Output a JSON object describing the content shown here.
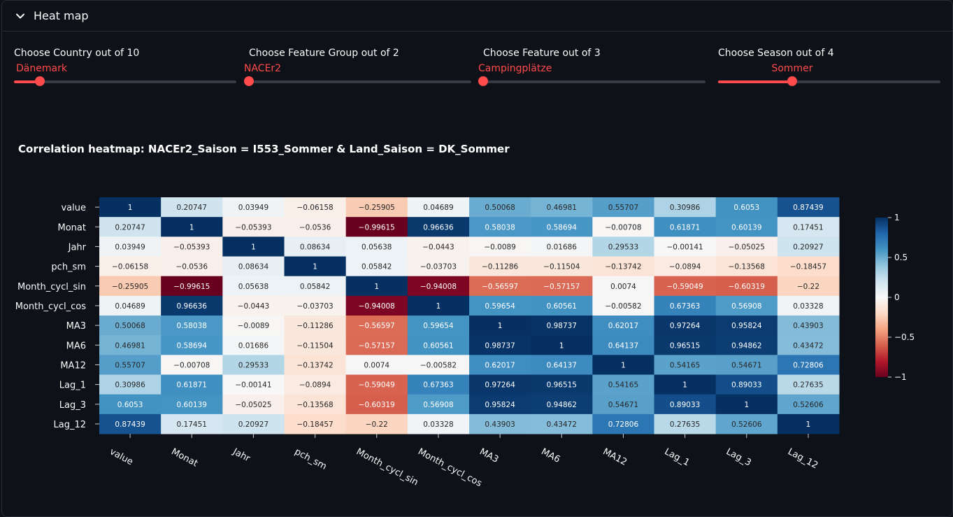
{
  "expander": {
    "title": "Heat map"
  },
  "sliders": [
    {
      "label": "Choose Country out of 10",
      "value": "Dänemark",
      "position": 2,
      "count": 10
    },
    {
      "label": "Choose Feature Group out of 2",
      "value": "NACEr2",
      "position": 1,
      "count": 2
    },
    {
      "label": "Choose Feature out of 3",
      "value": "Campingplätze",
      "position": 1,
      "count": 3
    },
    {
      "label": "Choose Season out of 4",
      "value": "Sommer",
      "position": 3,
      "count": 4
    }
  ],
  "colors": {
    "accent": "#ff4b4b",
    "background": "#0e1117",
    "track": "#383b45"
  },
  "chart_data": {
    "type": "heatmap",
    "title": "Correlation heatmap: NACEr2_Saison = I553_Sommer & Land_Saison = DK_Sommer",
    "labels": [
      "value",
      "Monat",
      "Jahr",
      "pch_sm",
      "Month_cycl_sin",
      "Month_cycl_cos",
      "MA3",
      "MA6",
      "MA12",
      "Lag_1",
      "Lag_3",
      "Lag_12"
    ],
    "values": [
      [
        1,
        0.20747,
        0.03949,
        -0.06158,
        -0.25905,
        0.04689,
        0.50068,
        0.46981,
        0.55707,
        0.30986,
        0.6053,
        0.87439
      ],
      [
        0.20747,
        1,
        -0.05393,
        -0.0536,
        -0.99615,
        0.96636,
        0.58038,
        0.58694,
        -0.00708,
        0.61871,
        0.60139,
        0.17451
      ],
      [
        0.03949,
        -0.05393,
        1,
        0.08634,
        0.05638,
        -0.0443,
        -0.0089,
        0.01686,
        0.29533,
        -0.00141,
        -0.05025,
        0.20927
      ],
      [
        -0.06158,
        -0.0536,
        0.08634,
        1,
        0.05842,
        -0.03703,
        -0.11286,
        -0.11504,
        -0.13742,
        -0.0894,
        -0.13568,
        -0.18457
      ],
      [
        -0.25905,
        -0.99615,
        0.05638,
        0.05842,
        1,
        -0.94008,
        -0.56597,
        -0.57157,
        0.0074,
        -0.59049,
        -0.60319,
        -0.22
      ],
      [
        0.04689,
        0.96636,
        -0.0443,
        -0.03703,
        -0.94008,
        1,
        0.59654,
        0.60561,
        -0.00582,
        0.67363,
        0.56908,
        0.03328
      ],
      [
        0.50068,
        0.58038,
        -0.0089,
        -0.11286,
        -0.56597,
        0.59654,
        1,
        0.98737,
        0.62017,
        0.97264,
        0.95824,
        0.43903
      ],
      [
        0.46981,
        0.58694,
        0.01686,
        -0.11504,
        -0.57157,
        0.60561,
        0.98737,
        1,
        0.64137,
        0.96515,
        0.94862,
        0.43472
      ],
      [
        0.55707,
        -0.00708,
        0.29533,
        -0.13742,
        0.0074,
        -0.00582,
        0.62017,
        0.64137,
        1,
        0.54165,
        0.54671,
        0.72806
      ],
      [
        0.30986,
        0.61871,
        -0.00141,
        -0.0894,
        -0.59049,
        0.67363,
        0.97264,
        0.96515,
        0.54165,
        1,
        0.89033,
        0.27635
      ],
      [
        0.6053,
        0.60139,
        -0.05025,
        -0.13568,
        -0.60319,
        0.56908,
        0.95824,
        0.94862,
        0.54671,
        0.89033,
        1,
        0.52606
      ],
      [
        0.87439,
        0.17451,
        0.20927,
        -0.18457,
        -0.22,
        0.03328,
        0.43903,
        0.43472,
        0.72806,
        0.27635,
        0.52606,
        1
      ]
    ],
    "vmin": -1,
    "vmax": 1,
    "colormap": "RdBu",
    "colorbar_ticks": [
      "1",
      "0.5",
      "0",
      "−0.5",
      "−1"
    ]
  }
}
